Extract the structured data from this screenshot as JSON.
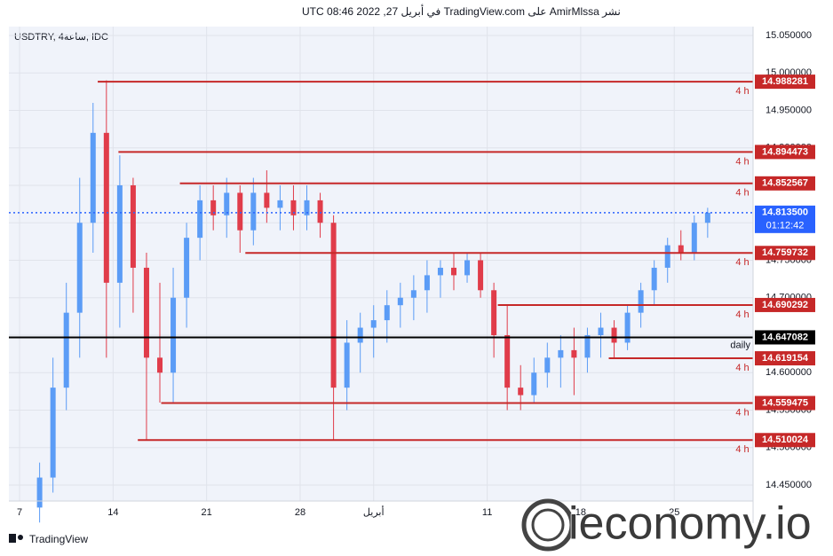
{
  "header": {
    "text": "نشر AmirMlssa على TradingView.com في أبريل 27, 2022 08:46 UTC"
  },
  "footer": {
    "brand": "TradingView",
    "watermark": "ieconomy.io"
  },
  "chart_data": {
    "type": "candlestick",
    "symbol": "USDTRY, 4ساعة, IDC",
    "up_color": "#5b9cf6",
    "down_color": "#e03c4a",
    "x": [
      1.5,
      2.5,
      3.5,
      4.5,
      5.5,
      6.5,
      7.5,
      8.5,
      9.5,
      10.5,
      11.5,
      12.5,
      13.5,
      14.5,
      15.5,
      16.5,
      17.5,
      18.5,
      19.5,
      20.5,
      21.5,
      22.5,
      23.5,
      24.5,
      25.5,
      26.5,
      27.5,
      28.5,
      29.5,
      30.5,
      31.5,
      32.5,
      33.5,
      34.5,
      35.5,
      36.5,
      37.5,
      38.5,
      39.5,
      40.5,
      41.5,
      42.5,
      43.5,
      44.5,
      45.5,
      46.5,
      47.5,
      48.5,
      49.5,
      50.5,
      51.5
    ],
    "open": [
      14.42,
      14.46,
      14.58,
      14.68,
      14.8,
      14.92,
      14.72,
      14.85,
      14.74,
      14.62,
      14.6,
      14.7,
      14.78,
      14.83,
      14.81,
      14.84,
      14.79,
      14.84,
      14.82,
      14.83,
      14.81,
      14.83,
      14.8,
      14.58,
      14.64,
      14.66,
      14.67,
      14.69,
      14.7,
      14.71,
      14.73,
      14.74,
      14.73,
      14.75,
      14.71,
      14.65,
      14.58,
      14.57,
      14.6,
      14.62,
      14.63,
      14.62,
      14.65,
      14.66,
      14.64,
      14.68,
      14.71,
      14.74,
      14.77,
      14.76,
      14.8
    ],
    "high": [
      14.48,
      14.62,
      14.72,
      14.86,
      14.96,
      14.99,
      14.89,
      14.86,
      14.76,
      14.72,
      14.74,
      14.8,
      14.85,
      14.85,
      14.86,
      14.85,
      14.86,
      14.87,
      14.85,
      14.85,
      14.85,
      14.84,
      14.81,
      14.67,
      14.68,
      14.69,
      14.71,
      14.72,
      14.73,
      14.75,
      14.75,
      14.76,
      14.76,
      14.76,
      14.72,
      14.69,
      14.61,
      14.62,
      14.64,
      14.65,
      14.66,
      14.66,
      14.68,
      14.67,
      14.69,
      14.72,
      14.75,
      14.78,
      14.79,
      14.81,
      14.82
    ],
    "low": [
      14.4,
      14.44,
      14.55,
      14.62,
      14.76,
      14.62,
      14.66,
      14.68,
      14.51,
      14.56,
      14.56,
      14.66,
      14.75,
      14.79,
      14.78,
      14.76,
      14.77,
      14.8,
      14.79,
      14.79,
      14.79,
      14.78,
      14.51,
      14.55,
      14.6,
      14.62,
      14.64,
      14.66,
      14.67,
      14.68,
      14.7,
      14.71,
      14.72,
      14.7,
      14.62,
      14.55,
      14.55,
      14.56,
      14.58,
      14.58,
      14.57,
      14.6,
      14.62,
      14.62,
      14.63,
      14.66,
      14.69,
      14.72,
      14.75,
      14.75,
      14.78
    ],
    "close": [
      14.46,
      14.58,
      14.68,
      14.8,
      14.92,
      14.72,
      14.85,
      14.74,
      14.62,
      14.6,
      14.7,
      14.78,
      14.83,
      14.81,
      14.84,
      14.79,
      14.84,
      14.82,
      14.83,
      14.81,
      14.83,
      14.8,
      14.58,
      14.64,
      14.66,
      14.67,
      14.69,
      14.7,
      14.71,
      14.73,
      14.74,
      14.73,
      14.75,
      14.71,
      14.65,
      14.58,
      14.57,
      14.6,
      14.62,
      14.63,
      14.62,
      14.65,
      14.66,
      14.64,
      14.68,
      14.71,
      14.74,
      14.77,
      14.76,
      14.8,
      14.8135
    ],
    "xlim": [
      -0.8,
      54.9
    ],
    "ylim": [
      14.4287,
      15.0618
    ],
    "grid": true,
    "xticks": [
      {
        "value": 0,
        "label": "7"
      },
      {
        "value": 7,
        "label": "14"
      },
      {
        "value": 14,
        "label": "21"
      },
      {
        "value": 21,
        "label": "28"
      },
      {
        "value": 26.5,
        "label": "أبريل"
      },
      {
        "value": 35,
        "label": "11"
      },
      {
        "value": 42,
        "label": "18"
      },
      {
        "value": 49,
        "label": "25"
      }
    ],
    "yticks": [
      {
        "value": 15.05,
        "label": "15.050000"
      },
      {
        "value": 15.0,
        "label": "15.000000"
      },
      {
        "value": 14.95,
        "label": "14.950000"
      },
      {
        "value": 14.9,
        "label": "14.900000"
      },
      {
        "value": 14.85,
        "label": "14.850000"
      },
      {
        "value": 14.8,
        "label": "14.800000"
      },
      {
        "value": 14.75,
        "label": "14.750000"
      },
      {
        "value": 14.7,
        "label": "14.700000"
      },
      {
        "value": 14.65,
        "label": "14.650000"
      },
      {
        "value": 14.6,
        "label": "14.600000"
      },
      {
        "value": 14.55,
        "label": "14.550000"
      },
      {
        "value": 14.5,
        "label": "14.500000"
      },
      {
        "value": 14.45,
        "label": "14.450000"
      }
    ],
    "level_color": "#c62828",
    "levels": [
      {
        "value": 14.988281,
        "start": 5.85,
        "tag": "4 h"
      },
      {
        "value": 14.894473,
        "start": 7.4,
        "tag": "4 h"
      },
      {
        "value": 14.852567,
        "start": 12.0,
        "tag": "4 h"
      },
      {
        "value": 14.759732,
        "start": 16.9,
        "tag": "4 h"
      },
      {
        "value": 14.690292,
        "start": 35.8,
        "tag": "4 h"
      },
      {
        "value": 14.619154,
        "start": 44.1,
        "tag": "4 h"
      },
      {
        "value": 14.559475,
        "start": 10.6,
        "tag": "4 h"
      },
      {
        "value": 14.510024,
        "start": 8.85,
        "tag": "4 h"
      }
    ],
    "daily": {
      "value": 14.647082,
      "tag": "daily"
    },
    "last": {
      "value": 14.8135,
      "label": "14.813500",
      "countdown": "01:12:42",
      "color": "#2962ff"
    }
  }
}
